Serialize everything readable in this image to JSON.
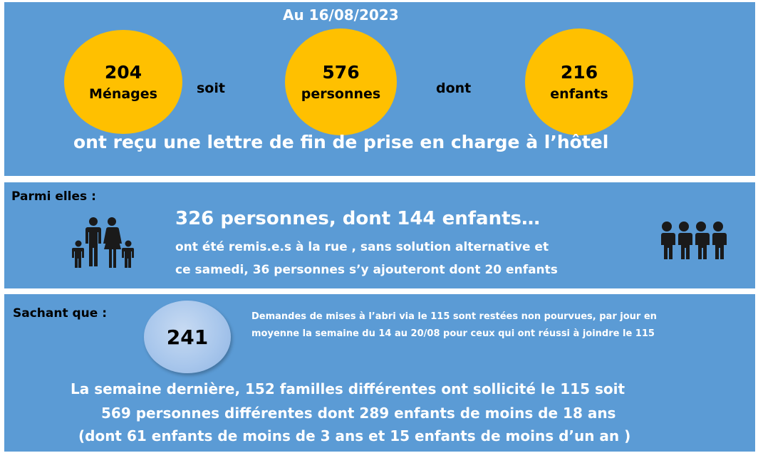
{
  "header": {
    "date": "Au 16/08/2023"
  },
  "stats": {
    "households": {
      "value": "204",
      "label": "Ménages"
    },
    "connector1": "soit",
    "persons": {
      "value": "576",
      "label": "personnes"
    },
    "connector2": "dont",
    "children": {
      "value": "216",
      "label": "enfants"
    },
    "summary": "ont reçu une lettre de fin de prise en charge à l’hôtel"
  },
  "among": {
    "heading": "Parmi elles :",
    "headline": "326 personnes, dont 144 enfants…",
    "line1": "ont été remis.e.s à la rue , sans solution alternative et",
    "line2": "ce samedi, 36 personnes s’y  ajouteront dont 20 enfants",
    "icons": [
      "family-icon",
      "children-group-icon"
    ]
  },
  "knowing": {
    "heading": "Sachant que :",
    "bubble_value": "241",
    "note_line1": "Demandes de mises à l’abri via le 115 sont restées non pourvues, par jour en",
    "note_line2": "moyenne la semaine du 14 au 20/08 pour ceux qui ont réussi à joindre le 115",
    "week_line1": "La semaine dernière,  152 familles différentes ont sollicité le 115 soit",
    "week_line2": "569 personnes différentes dont 289 enfants de moins de 18 ans",
    "week_line3": "(dont 61 enfants de moins de 3 ans et 15 enfants de moins d’un an )"
  },
  "colors": {
    "panel": "#5b9bd5",
    "circle": "#ffc000",
    "bubble": "#a9c7ec",
    "text_light": "#ffffff",
    "text_dark": "#000000"
  }
}
